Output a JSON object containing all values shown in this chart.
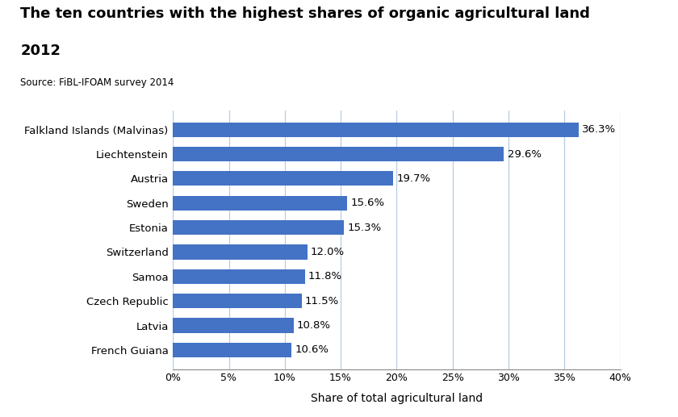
{
  "title_line1": "The ten countries with the highest shares of organic agricultural land",
  "title_line2": "2012",
  "source": "Source: FiBL-IFOAM survey 2014",
  "countries": [
    "Falkland Islands (Malvinas)",
    "Liechtenstein",
    "Austria",
    "Sweden",
    "Estonia",
    "Switzerland",
    "Samoa",
    "Czech Republic",
    "Latvia",
    "French Guiana"
  ],
  "values": [
    36.3,
    29.6,
    19.7,
    15.6,
    15.3,
    12.0,
    11.8,
    11.5,
    10.8,
    10.6
  ],
  "labels": [
    "36.3%",
    "29.6%",
    "19.7%",
    "15.6%",
    "15.3%",
    "12.0%",
    "11.8%",
    "11.5%",
    "10.8%",
    "10.6%"
  ],
  "bar_color": "#4472C4",
  "xlabel": "Share of total agricultural land",
  "xlim": [
    0,
    40
  ],
  "xticks": [
    0,
    5,
    10,
    15,
    20,
    25,
    30,
    35,
    40
  ],
  "xticklabels": [
    "0%",
    "5%",
    "10%",
    "15%",
    "20%",
    "25%",
    "30%",
    "35%",
    "40%"
  ],
  "title_fontsize": 13,
  "source_fontsize": 8.5,
  "label_fontsize": 9.5,
  "tick_fontsize": 9,
  "xlabel_fontsize": 10,
  "grid_color": "#b8cce4",
  "spine_color": "#888888"
}
